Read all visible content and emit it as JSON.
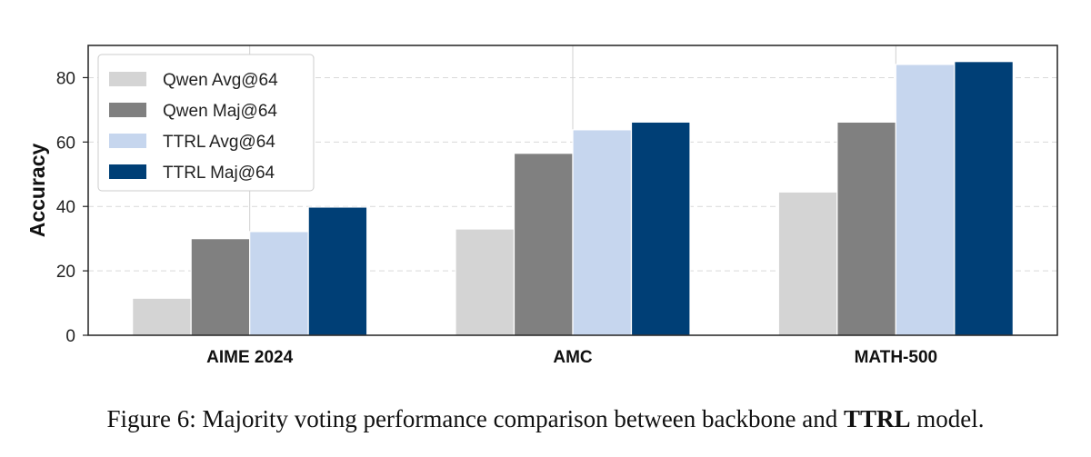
{
  "chart_data": {
    "type": "bar",
    "categories": [
      "AIME 2024",
      "AMC",
      "MATH-500"
    ],
    "series": [
      {
        "name": "Qwen Avg@64",
        "color": "#d4d4d4",
        "values": [
          11.5,
          33.0,
          44.5
        ]
      },
      {
        "name": "Qwen Maj@64",
        "color": "#808080",
        "values": [
          30.0,
          56.5,
          66.2
        ]
      },
      {
        "name": "TTRL Avg@64",
        "color": "#c6d6ee",
        "values": [
          32.2,
          63.8,
          84.1
        ]
      },
      {
        "name": "TTRL Maj@64",
        "color": "#003f76",
        "values": [
          39.8,
          66.2,
          85.0
        ]
      }
    ],
    "ylabel": "Accuracy",
    "xlabel": "",
    "ylim": [
      0,
      90
    ],
    "yticks": [
      0,
      20,
      40,
      60,
      80
    ],
    "grid": true,
    "legend_position": "top-left"
  },
  "caption": {
    "prefix": "Figure 6: Majority voting performance comparison between backbone and ",
    "bold": "TTRL",
    "suffix": " model."
  }
}
